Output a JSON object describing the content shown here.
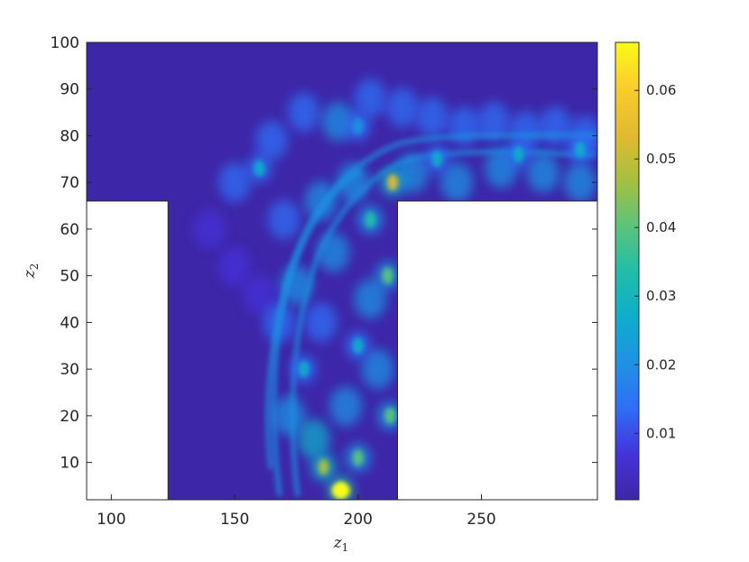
{
  "chart_data": {
    "type": "heatmap",
    "title": "",
    "xlabel": "z",
    "xlabel_sub": "1",
    "ylabel": "z",
    "ylabel_sub": "2",
    "xlim": [
      90,
      297
    ],
    "ylim": [
      2,
      100
    ],
    "x_ticks": [
      100,
      150,
      200,
      250
    ],
    "y_ticks": [
      10,
      20,
      30,
      40,
      50,
      60,
      70,
      80,
      90,
      100
    ],
    "colorbar": {
      "range": [
        0.0003,
        0.067
      ],
      "ticks": [
        0.01,
        0.02,
        0.03,
        0.04,
        0.05,
        0.06
      ],
      "colormap": [
        "#3e26a8",
        "#4433d9",
        "#2f6ef6",
        "#1f92e3",
        "#0fadcb",
        "#22bda8",
        "#5cc47a",
        "#a7c03e",
        "#e3ba2f",
        "#fbcc2e",
        "#f9fb15"
      ]
    },
    "masked_regions": [
      {
        "x": [
          90,
          123
        ],
        "y": [
          2,
          66
        ]
      },
      {
        "x": [
          216,
          297
        ],
        "y": [
          2,
          66
        ]
      }
    ],
    "peak": {
      "x": 193,
      "y": 4,
      "value": 0.067
    },
    "hotspots": [
      {
        "x": 193,
        "y": 4,
        "value": 0.067
      },
      {
        "x": 186,
        "y": 9,
        "value": 0.045
      },
      {
        "x": 200,
        "y": 11,
        "value": 0.04
      },
      {
        "x": 213,
        "y": 20,
        "value": 0.042
      },
      {
        "x": 212,
        "y": 50,
        "value": 0.04
      },
      {
        "x": 214,
        "y": 70,
        "value": 0.055
      },
      {
        "x": 205,
        "y": 62,
        "value": 0.035
      },
      {
        "x": 178,
        "y": 30,
        "value": 0.03
      },
      {
        "x": 200,
        "y": 35,
        "value": 0.028
      },
      {
        "x": 232,
        "y": 75,
        "value": 0.03
      },
      {
        "x": 265,
        "y": 76,
        "value": 0.028
      },
      {
        "x": 290,
        "y": 77,
        "value": 0.025
      },
      {
        "x": 160,
        "y": 73,
        "value": 0.025
      },
      {
        "x": 200,
        "y": 82,
        "value": 0.02
      }
    ]
  }
}
